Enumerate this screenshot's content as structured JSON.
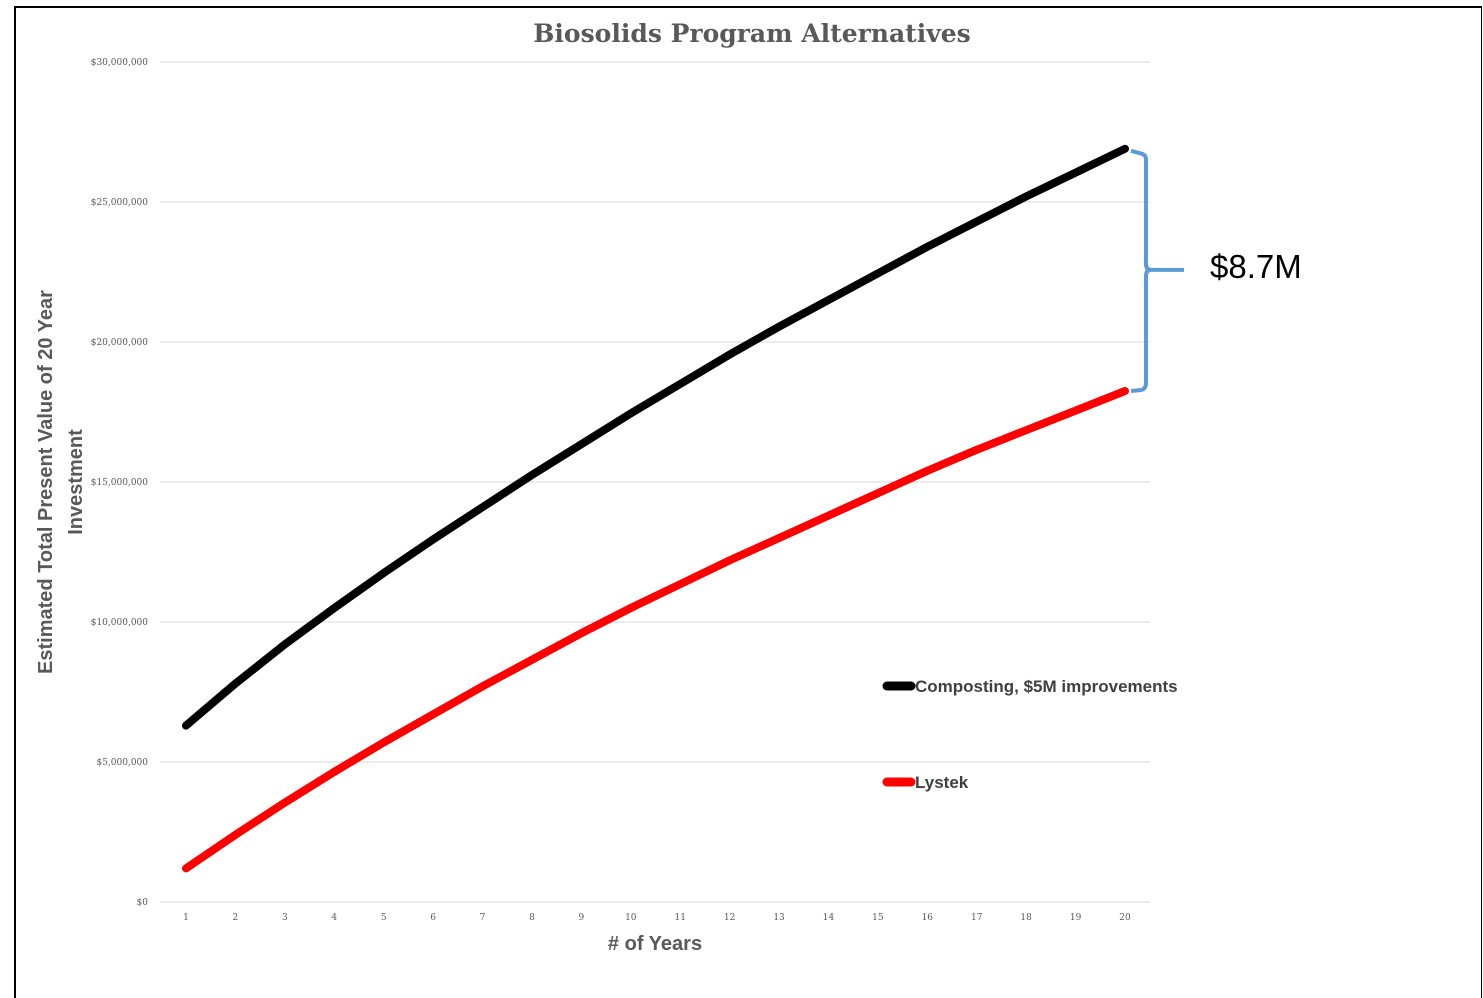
{
  "chart_data": {
    "type": "line",
    "title": "Biosolids Program Alternatives",
    "xlabel": "# of Years",
    "ylabel_lines": [
      "Estimated Total Present Value of 20 Year",
      "Investment"
    ],
    "x": [
      1,
      2,
      3,
      4,
      5,
      6,
      7,
      8,
      9,
      10,
      11,
      12,
      13,
      14,
      15,
      16,
      17,
      18,
      19,
      20
    ],
    "x_tick_labels": [
      "1",
      "2",
      "3",
      "4",
      "5",
      "6",
      "7",
      "8",
      "9",
      "10",
      "11",
      "12",
      "13",
      "14",
      "15",
      "16",
      "17",
      "18",
      "19",
      "20"
    ],
    "ylim": [
      0,
      30000000
    ],
    "y_ticks": [
      0,
      5000000,
      10000000,
      15000000,
      20000000,
      25000000,
      30000000
    ],
    "y_tick_labels": [
      "$0",
      "$5,000,000",
      "$10,000,000",
      "$15,000,000",
      "$20,000,000",
      "$25,000,000",
      "$30,000,000"
    ],
    "grid": true,
    "legend_position": "right",
    "series": [
      {
        "name": "Composting, $5M improvements",
        "color": "#000000",
        "values": [
          6300000,
          7800000,
          9200000,
          10500000,
          11750000,
          12950000,
          14100000,
          15250000,
          16350000,
          17450000,
          18500000,
          19550000,
          20550000,
          21500000,
          22450000,
          23400000,
          24300000,
          25200000,
          26050000,
          26900000
        ]
      },
      {
        "name": "Lystek",
        "color": "#ff0000",
        "values": [
          1200000,
          2400000,
          3550000,
          4650000,
          5700000,
          6700000,
          7700000,
          8650000,
          9600000,
          10500000,
          11350000,
          12200000,
          13000000,
          13800000,
          14600000,
          15400000,
          16150000,
          16850000,
          17550000,
          18250000
        ]
      }
    ],
    "annotation": {
      "label": "$8.7M",
      "color": "#5b9bd5"
    }
  }
}
